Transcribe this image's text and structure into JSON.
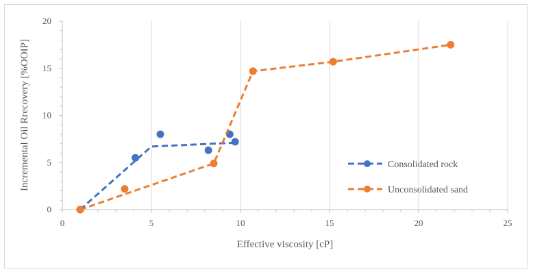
{
  "chart_data": {
    "type": "scatter",
    "title": "",
    "xlabel": "Effective viscosity [cP]",
    "ylabel": "Incremental Oil Rrecovery [%OOIP]",
    "xlim": [
      0,
      25
    ],
    "ylim": [
      0,
      20
    ],
    "x_ticks": [
      "0",
      "5",
      "10",
      "15",
      "20",
      "25"
    ],
    "y_ticks": [
      "0",
      "5",
      "10",
      "15",
      "20"
    ],
    "grid": "vertical major gridlines",
    "legend_position": "right",
    "series": [
      {
        "name": "Consolidated rock",
        "color": "#4472C4",
        "points": [
          {
            "x": 1.0,
            "y": 0.0
          },
          {
            "x": 4.1,
            "y": 5.5
          },
          {
            "x": 5.5,
            "y": 8.0
          },
          {
            "x": 8.2,
            "y": 6.3
          },
          {
            "x": 9.4,
            "y": 8.0
          },
          {
            "x": 9.7,
            "y": 7.2
          }
        ],
        "trend": [
          {
            "x": 1.0,
            "y": 0.0
          },
          {
            "x": 5.0,
            "y": 6.7
          },
          {
            "x": 9.7,
            "y": 7.1
          }
        ]
      },
      {
        "name": "Unconsolidated sand",
        "color": "#ED7D31",
        "points": [
          {
            "x": 1.0,
            "y": 0.0
          },
          {
            "x": 3.5,
            "y": 2.2
          },
          {
            "x": 8.5,
            "y": 4.9
          },
          {
            "x": 10.7,
            "y": 14.7
          },
          {
            "x": 15.2,
            "y": 15.7
          },
          {
            "x": 21.8,
            "y": 17.5
          }
        ],
        "trend": [
          {
            "x": 1.0,
            "y": 0.0
          },
          {
            "x": 8.5,
            "y": 4.9
          },
          {
            "x": 10.7,
            "y": 14.7
          },
          {
            "x": 15.2,
            "y": 15.7
          },
          {
            "x": 21.8,
            "y": 17.5
          }
        ]
      }
    ]
  }
}
